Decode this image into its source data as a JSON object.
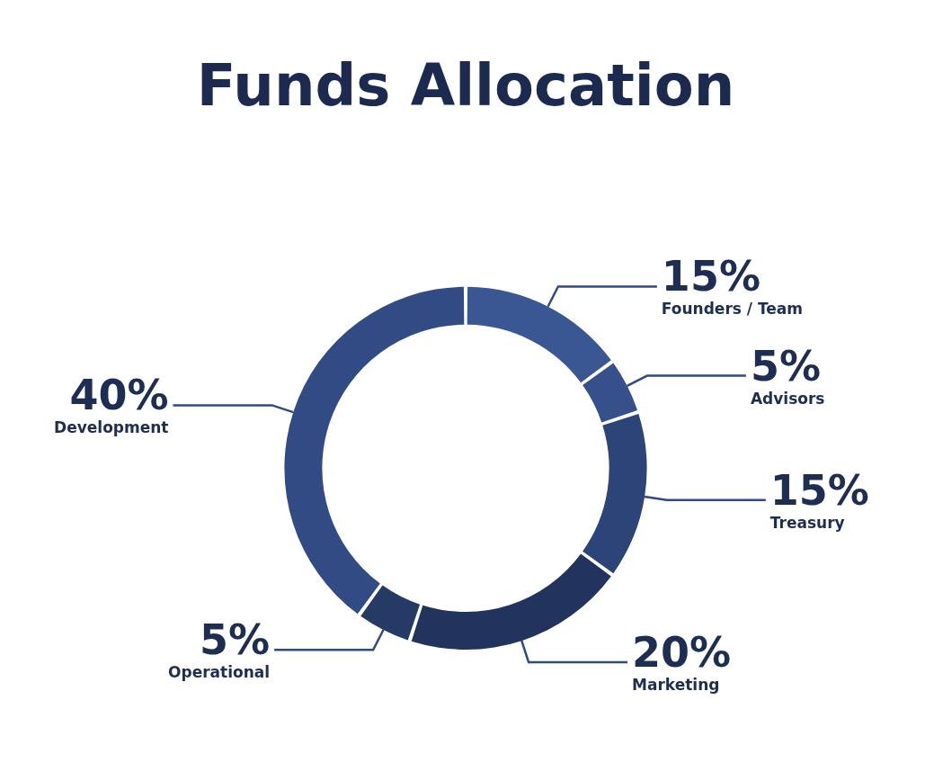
{
  "chart_data": {
    "type": "donut",
    "title": "Funds Allocation",
    "categories": [
      "Founders / Team",
      "Advisors",
      "Treasury",
      "Marketing",
      "Operational",
      "Development"
    ],
    "values": [
      15,
      5,
      15,
      20,
      5,
      40
    ],
    "value_labels": [
      "15%",
      "5%",
      "15%",
      "20%",
      "5%",
      "40%"
    ],
    "colors": [
      "#3a5794",
      "#35508a",
      "#2c4477",
      "#22345e",
      "#263a66",
      "#324b85"
    ],
    "legend": false
  }
}
